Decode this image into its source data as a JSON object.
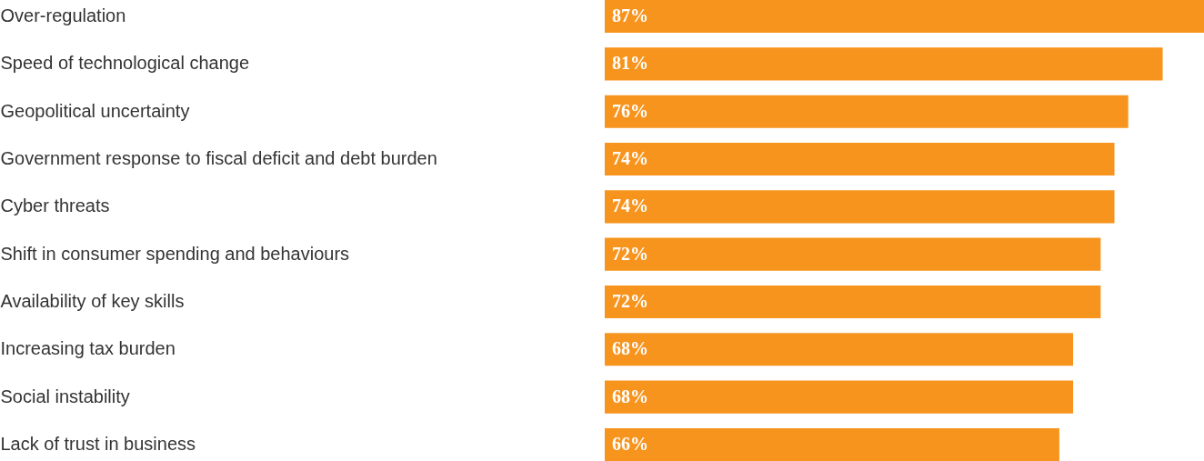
{
  "chart_data": {
    "type": "bar",
    "orientation": "horizontal",
    "categories": [
      "Over-regulation",
      "Speed of technological change",
      "Geopolitical uncertainty",
      "Government response to fiscal deficit and debt burden",
      "Cyber threats",
      "Shift in consumer spending and behaviours",
      "Availability of key skills",
      "Increasing tax burden",
      "Social instability",
      "Lack of trust in business"
    ],
    "values": [
      87,
      81,
      76,
      74,
      74,
      72,
      72,
      68,
      68,
      66
    ],
    "value_labels": [
      "87%",
      "81%",
      "76%",
      "74%",
      "74%",
      "72%",
      "72%",
      "68%",
      "68%",
      "66%"
    ],
    "color": "#f7941d"
  }
}
